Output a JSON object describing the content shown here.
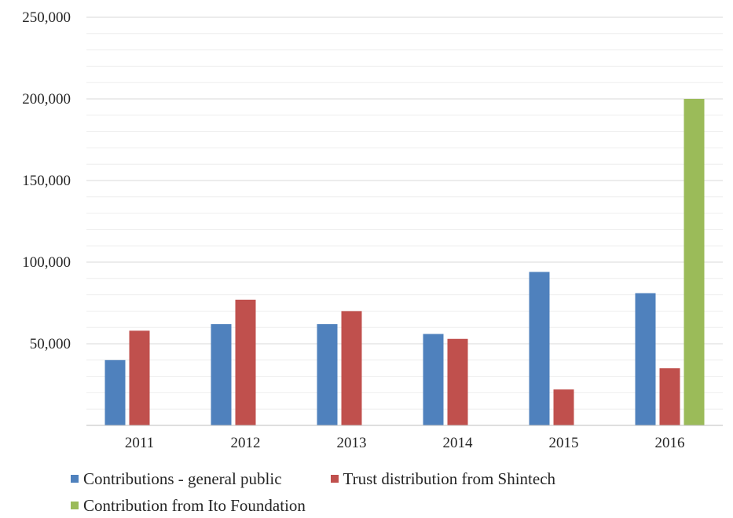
{
  "chart_data": {
    "type": "bar",
    "categories": [
      "2011",
      "2012",
      "2013",
      "2014",
      "2015",
      "2016"
    ],
    "series": [
      {
        "name": "Contributions - general public",
        "color": "#4f81bd",
        "values": [
          40000,
          62000,
          62000,
          56000,
          94000,
          81000
        ]
      },
      {
        "name": "Trust distribution from Shintech",
        "color": "#c0504d",
        "values": [
          58000,
          77000,
          70000,
          53000,
          22000,
          35000
        ]
      },
      {
        "name": "Contribution from Ito Foundation",
        "color": "#9bbb59",
        "values": [
          0,
          0,
          0,
          0,
          0,
          200000
        ]
      }
    ],
    "y_ticks": [
      "50,000",
      "100,000",
      "150,000",
      "200,000",
      "250,000"
    ],
    "ylim": [
      0,
      250000
    ],
    "y_major_step": 50000,
    "y_minor_step": 10000,
    "grid": true,
    "legend_position": "bottom-left",
    "title": "",
    "xlabel": "",
    "ylabel": ""
  }
}
